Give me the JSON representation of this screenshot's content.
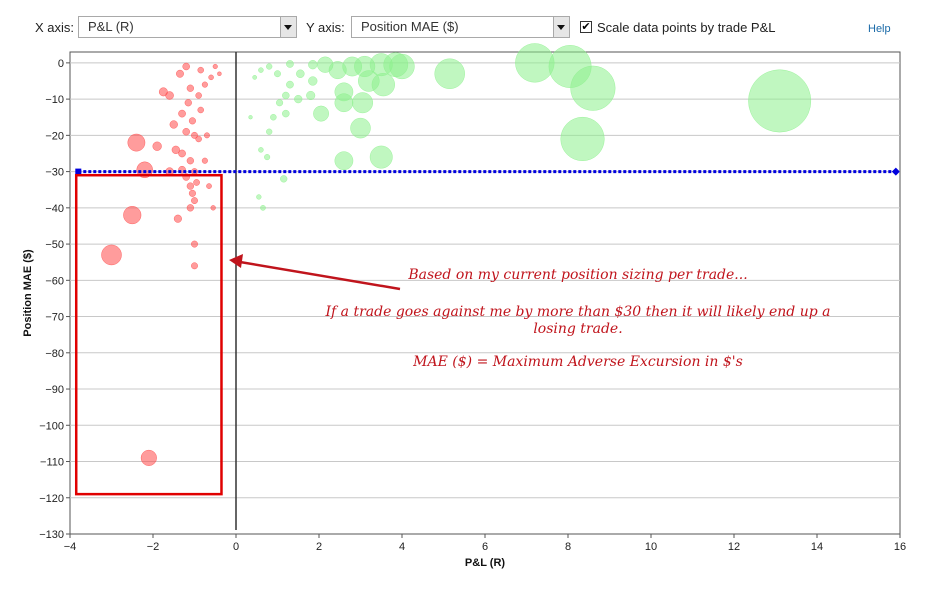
{
  "toolbar": {
    "x_axis_label": "X axis:",
    "x_axis_value": "P&L (R)",
    "y_axis_label": "Y axis:",
    "y_axis_value": "Position MAE ($)",
    "scale_checkbox_checked": true,
    "scale_checkbox_label": "Scale data points by trade P&L",
    "help_link": "Help"
  },
  "annotation": {
    "line1": "Based on my current position sizing per trade...",
    "line2": "If a trade goes against me by more than $30 then it will likely end up a",
    "line3": "losing trade.",
    "line4": "MAE ($) = Maximum Adverse Excursion in $'s",
    "color": "#c0141c"
  },
  "chart_data": {
    "type": "scatter",
    "xlabel": "P&L (R)",
    "ylabel": "Position MAE ($)",
    "xlim": [
      -4,
      16
    ],
    "ylim": [
      -130,
      3
    ],
    "xticks": [
      -4,
      -2,
      0,
      2,
      4,
      6,
      8,
      10,
      12,
      14,
      16
    ],
    "yticks": [
      0,
      -10,
      -20,
      -30,
      -40,
      -50,
      -60,
      -70,
      -80,
      -90,
      -100,
      -110,
      -120,
      -130
    ],
    "grid": "horizontal",
    "threshold_line": {
      "y": -30,
      "x_range": [
        -3.8,
        15.9
      ],
      "color": "#0000dd"
    },
    "highlight_box": {
      "x_range": [
        -3.85,
        -0.35
      ],
      "y_range": [
        -119,
        -31
      ],
      "color": "#e00000"
    },
    "vertical_line_x": 0,
    "series": [
      {
        "color": "#ff4a4a",
        "points": [
          {
            "x": -2.1,
            "y": -109
          },
          {
            "x": -1.0,
            "y": -56
          },
          {
            "x": -1.0,
            "y": -50
          },
          {
            "x": -3.0,
            "y": -53
          },
          {
            "x": -2.5,
            "y": -42
          },
          {
            "x": -1.4,
            "y": -43
          },
          {
            "x": -0.55,
            "y": -40
          },
          {
            "x": -1.1,
            "y": -40
          },
          {
            "x": -1.0,
            "y": -38
          },
          {
            "x": -1.05,
            "y": -36
          },
          {
            "x": -1.1,
            "y": -34
          },
          {
            "x": -0.95,
            "y": -33
          },
          {
            "x": -1.2,
            "y": -31.5
          },
          {
            "x": -1.0,
            "y": -30
          },
          {
            "x": -1.3,
            "y": -29.5
          },
          {
            "x": -1.6,
            "y": -30
          },
          {
            "x": -2.2,
            "y": -29.5
          },
          {
            "x": -0.75,
            "y": -27
          },
          {
            "x": -1.1,
            "y": -27
          },
          {
            "x": -1.3,
            "y": -25
          },
          {
            "x": -1.9,
            "y": -23
          },
          {
            "x": -0.9,
            "y": -21
          },
          {
            "x": -1.0,
            "y": -20
          },
          {
            "x": -1.2,
            "y": -19
          },
          {
            "x": -0.7,
            "y": -20
          },
          {
            "x": -1.5,
            "y": -17
          },
          {
            "x": -1.05,
            "y": -16
          },
          {
            "x": -1.3,
            "y": -14
          },
          {
            "x": -0.85,
            "y": -13
          },
          {
            "x": -1.15,
            "y": -11
          },
          {
            "x": -1.6,
            "y": -9
          },
          {
            "x": -2.4,
            "y": -22
          },
          {
            "x": -1.45,
            "y": -24
          },
          {
            "x": -0.65,
            "y": -34
          },
          {
            "x": -1.75,
            "y": -8
          },
          {
            "x": -1.1,
            "y": -7
          },
          {
            "x": -0.9,
            "y": -9
          },
          {
            "x": -0.75,
            "y": -6
          },
          {
            "x": -0.6,
            "y": -4
          },
          {
            "x": -0.4,
            "y": -3
          },
          {
            "x": -1.35,
            "y": -3
          },
          {
            "x": -0.85,
            "y": -2
          },
          {
            "x": -0.5,
            "y": -1
          },
          {
            "x": -1.2,
            "y": -1
          }
        ]
      },
      {
        "color": "#8cf08c",
        "points": [
          {
            "x": 8.35,
            "y": -21
          },
          {
            "x": 13.1,
            "y": -10.5
          },
          {
            "x": 7.2,
            "y": 0
          },
          {
            "x": 8.05,
            "y": -1
          },
          {
            "x": 3.5,
            "y": -26
          },
          {
            "x": 3.55,
            "y": -6
          },
          {
            "x": 3.5,
            "y": -0.5
          },
          {
            "x": 3.05,
            "y": -11
          },
          {
            "x": 2.6,
            "y": -27
          },
          {
            "x": 2.6,
            "y": -8
          },
          {
            "x": 3.0,
            "y": -18
          },
          {
            "x": 5.15,
            "y": -3
          },
          {
            "x": 8.6,
            "y": -7
          },
          {
            "x": 2.6,
            "y": -11
          },
          {
            "x": 3.2,
            "y": -5
          },
          {
            "x": 3.1,
            "y": -1
          },
          {
            "x": 2.8,
            "y": -1
          },
          {
            "x": 2.45,
            "y": -2
          },
          {
            "x": 2.15,
            "y": -0.5
          },
          {
            "x": 1.3,
            "y": -0.3
          },
          {
            "x": 1.85,
            "y": -0.5
          },
          {
            "x": 4.0,
            "y": -1
          },
          {
            "x": 3.85,
            "y": -0.5
          },
          {
            "x": 1.8,
            "y": -9
          },
          {
            "x": 1.5,
            "y": -10
          },
          {
            "x": 1.2,
            "y": -9
          },
          {
            "x": 1.85,
            "y": -5
          },
          {
            "x": 1.3,
            "y": -6
          },
          {
            "x": 1.05,
            "y": -11
          },
          {
            "x": 1.2,
            "y": -14
          },
          {
            "x": 0.8,
            "y": -19
          },
          {
            "x": 0.6,
            "y": -24
          },
          {
            "x": 0.75,
            "y": -26
          },
          {
            "x": 0.55,
            "y": -37
          },
          {
            "x": 0.65,
            "y": -40
          },
          {
            "x": 1.15,
            "y": -32
          },
          {
            "x": 0.45,
            "y": -4
          },
          {
            "x": 0.6,
            "y": -2
          },
          {
            "x": 0.8,
            "y": -1
          },
          {
            "x": 1.0,
            "y": -3
          },
          {
            "x": 0.35,
            "y": -15
          },
          {
            "x": 0.9,
            "y": -15
          },
          {
            "x": 1.55,
            "y": -3
          },
          {
            "x": 2.05,
            "y": -14
          }
        ]
      }
    ]
  }
}
